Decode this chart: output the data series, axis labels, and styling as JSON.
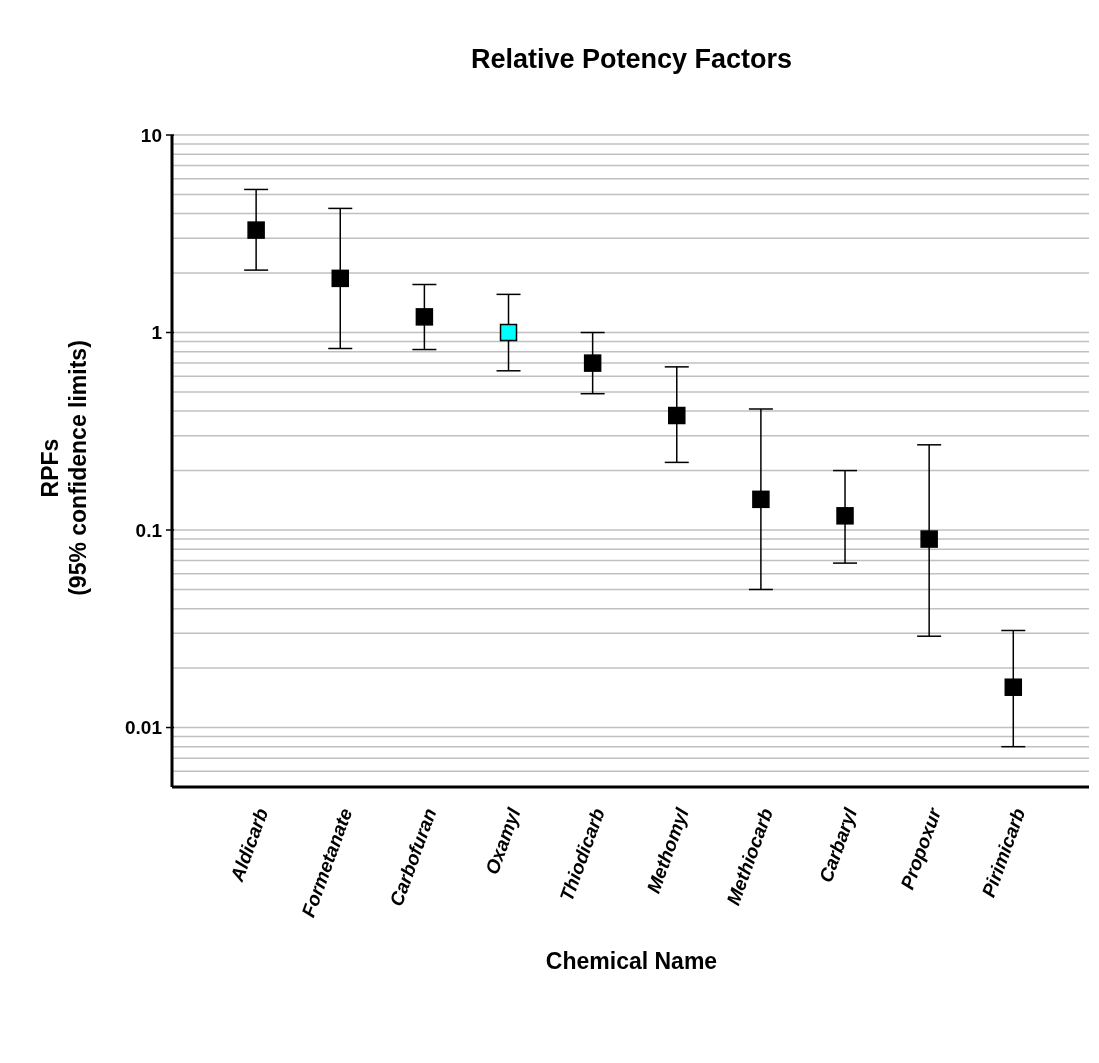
{
  "chart_data": {
    "type": "scatter",
    "title": "Relative Potency Factors",
    "xlabel": "Chemical Name",
    "ylabel": "RPFs\n(95% confidence limits)",
    "categories": [
      "Aldicarb",
      "Formetanate",
      "Carbofuran",
      "Oxamyl",
      "Thiodicarb",
      "Methomyl",
      "Methiocarb",
      "Carbaryl",
      "Propoxur",
      "Pirimicarb"
    ],
    "values": [
      3.3,
      1.88,
      1.2,
      1,
      0.7,
      0.38,
      0.143,
      0.118,
      0.09,
      0.016
    ],
    "errors": [
      [
        2.07,
        5.3
      ],
      [
        0.83,
        4.25
      ],
      [
        0.82,
        1.75
      ],
      [
        0.64,
        1.56
      ],
      [
        0.49,
        1
      ],
      [
        0.22,
        0.67
      ],
      [
        0.05,
        0.41
      ],
      [
        0.068,
        0.2
      ],
      [
        0.029,
        0.27
      ],
      [
        0.008,
        0.031
      ]
    ],
    "colors": [
      "#000000",
      "#000000",
      "#000000",
      "#00ffff",
      "#000000",
      "#000000",
      "#000000",
      "#000000",
      "#000000",
      "#000000"
    ],
    "marker": "square",
    "log": "y",
    "grid": "y",
    "ylim": [
      0.005,
      10
    ],
    "yticks": [
      {
        "value": 0.005,
        "label": null
      },
      {
        "value": 0.006,
        "label": null
      },
      {
        "value": 0.007,
        "label": null
      },
      {
        "value": 0.008,
        "label": null
      },
      {
        "value": 0.009,
        "label": null
      },
      {
        "value": 0.01,
        "label": "0.01"
      },
      {
        "value": 0.02,
        "label": null
      },
      {
        "value": 0.03,
        "label": null
      },
      {
        "value": 0.04,
        "label": null
      },
      {
        "value": 0.05,
        "label": null
      },
      {
        "value": 0.06,
        "label": null
      },
      {
        "value": 0.07,
        "label": null
      },
      {
        "value": 0.08,
        "label": null
      },
      {
        "value": 0.09,
        "label": null
      },
      {
        "value": 0.1,
        "label": "0.1"
      },
      {
        "value": 0.2,
        "label": null
      },
      {
        "value": 0.3,
        "label": null
      },
      {
        "value": 0.4,
        "label": null
      },
      {
        "value": 0.5,
        "label": null
      },
      {
        "value": 0.6,
        "label": null
      },
      {
        "value": 0.7,
        "label": null
      },
      {
        "value": 0.8,
        "label": null
      },
      {
        "value": 0.9,
        "label": null
      },
      {
        "value": 1,
        "label": "1"
      },
      {
        "value": 2,
        "label": null
      },
      {
        "value": 3,
        "label": null
      },
      {
        "value": 4,
        "label": null
      },
      {
        "value": 5,
        "label": null
      },
      {
        "value": 6,
        "label": null
      },
      {
        "value": 7,
        "label": null
      },
      {
        "value": 8,
        "label": null
      },
      {
        "value": 9,
        "label": null
      },
      {
        "value": 10,
        "label": "10"
      }
    ]
  }
}
